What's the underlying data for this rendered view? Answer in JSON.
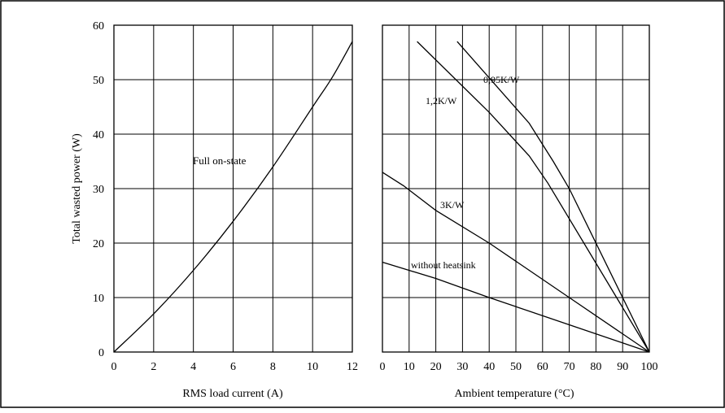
{
  "chart_data": [
    {
      "type": "line",
      "title": "",
      "xlabel": "RMS load current (A)",
      "ylabel": "Total wasted power (W)",
      "xlim": [
        0,
        12
      ],
      "ylim": [
        0,
        60
      ],
      "x_ticks": [
        "0",
        "2",
        "4",
        "6",
        "8",
        "10",
        "12"
      ],
      "y_ticks": [
        "0",
        "10",
        "20",
        "30",
        "40",
        "50",
        "60"
      ],
      "grid": true,
      "series": [
        {
          "name": "Full on-state",
          "x": [
            0,
            2,
            4,
            6,
            8,
            10,
            11,
            12
          ],
          "y": [
            0,
            7,
            15,
            24,
            34,
            45,
            50.5,
            57
          ]
        }
      ]
    },
    {
      "type": "line",
      "title": "",
      "xlabel": "Ambient temperature (°C)",
      "ylabel": "",
      "xlim": [
        0,
        100
      ],
      "ylim": [
        0,
        60
      ],
      "x_ticks": [
        "0",
        "10",
        "20",
        "30",
        "40",
        "50",
        "60",
        "70",
        "80",
        "90",
        "100"
      ],
      "grid": true,
      "series": [
        {
          "name": "0,95K/W",
          "x": [
            28,
            55,
            64,
            70,
            100
          ],
          "y": [
            57,
            42,
            35,
            30,
            0
          ]
        },
        {
          "name": "1,2K/W",
          "x": [
            13,
            40,
            55,
            62,
            100
          ],
          "y": [
            57,
            44,
            36,
            31,
            0
          ]
        },
        {
          "name": "3K/W",
          "x": [
            0,
            8,
            20,
            40,
            70,
            100
          ],
          "y": [
            33,
            30.5,
            26,
            20,
            10,
            0
          ]
        },
        {
          "name": "without heatsink",
          "x": [
            0,
            20,
            40,
            70,
            100
          ],
          "y": [
            16.5,
            13.5,
            10,
            5,
            0
          ]
        }
      ]
    }
  ]
}
